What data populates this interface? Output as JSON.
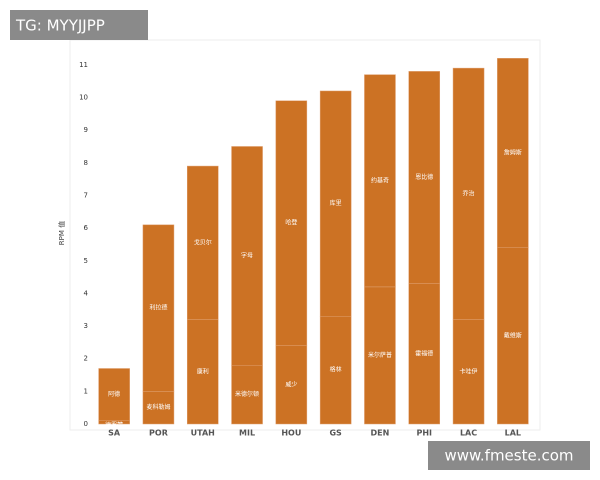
{
  "chart_data": {
    "type": "stacked_bar",
    "y_label": "RPM 值",
    "color": "#cc7224",
    "categories": [
      "SA",
      "POR",
      "UTAH",
      "MIL",
      "HOU",
      "GS",
      "DEN",
      "PHI",
      "LAC",
      "LAL"
    ],
    "segments": [
      [
        {
          "label": "德罗赞",
          "value": 0.1
        },
        {
          "label": "阿德",
          "value": 1.6
        }
      ],
      [
        {
          "label": "麦科勒姆",
          "value": 1.0
        },
        {
          "label": "利拉德",
          "value": 5.1
        }
      ],
      [
        {
          "label": "康利",
          "value": 3.2
        },
        {
          "label": "戈贝尔",
          "value": 4.7
        }
      ],
      [
        {
          "label": "米德尔顿",
          "value": 1.8
        },
        {
          "label": "字母",
          "value": 6.7
        }
      ],
      [
        {
          "label": "威少",
          "value": 2.4
        },
        {
          "label": "哈登",
          "value": 7.5
        }
      ],
      [
        {
          "label": "格林",
          "value": 3.3
        },
        {
          "label": "库里",
          "value": 6.9
        }
      ],
      [
        {
          "label": "米尔萨普",
          "value": 4.2
        },
        {
          "label": "约基奇",
          "value": 6.5
        }
      ],
      [
        {
          "label": "霍福德",
          "value": 4.3
        },
        {
          "label": "恩比德",
          "value": 6.5
        }
      ],
      [
        {
          "label": "卡哇伊",
          "value": 3.2
        },
        {
          "label": "乔治",
          "value": 7.7
        }
      ],
      [
        {
          "label": "戴维斯",
          "value": 5.4
        },
        {
          "label": "詹姆斯",
          "value": 5.8
        }
      ]
    ],
    "ylim": [
      0,
      11.7
    ],
    "yticks": [
      0,
      1,
      2,
      3,
      4,
      5,
      6,
      7,
      8,
      9,
      10,
      11
    ],
    "grid": false
  },
  "watermarks": [
    "TG: MYYJJPP",
    "www.fmeste.com"
  ]
}
